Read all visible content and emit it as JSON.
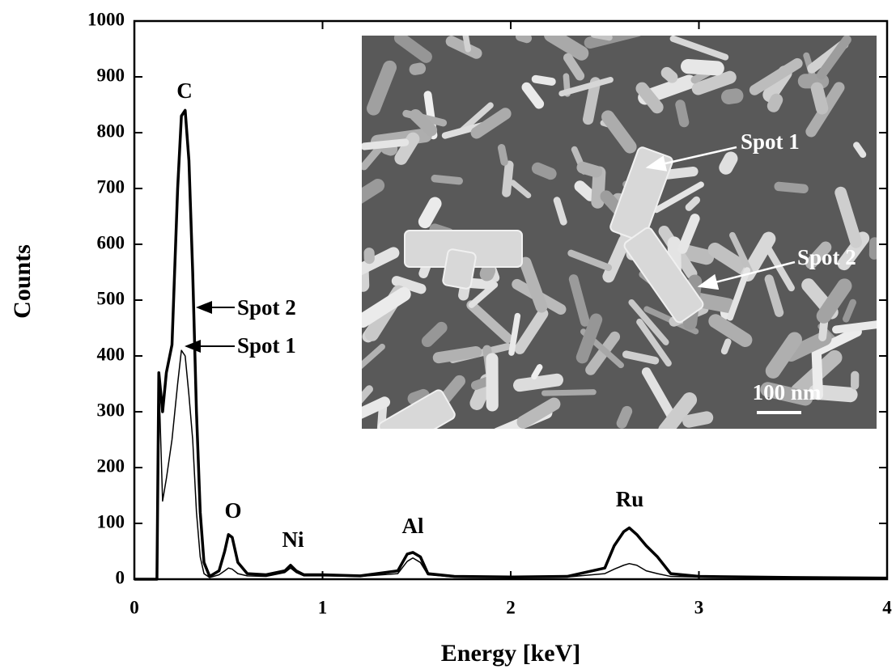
{
  "chart_data": {
    "type": "line",
    "xlabel": "Energy [keV]",
    "ylabel": "Counts",
    "x": [
      0,
      0.12,
      0.13,
      0.15,
      0.17,
      0.2,
      0.23,
      0.25,
      0.27,
      0.29,
      0.31,
      0.33,
      0.35,
      0.37,
      0.4,
      0.45,
      0.48,
      0.5,
      0.52,
      0.55,
      0.6,
      0.7,
      0.8,
      0.83,
      0.86,
      0.9,
      1.0,
      1.2,
      1.4,
      1.45,
      1.48,
      1.52,
      1.56,
      1.7,
      2.0,
      2.3,
      2.5,
      2.55,
      2.6,
      2.63,
      2.67,
      2.72,
      2.78,
      2.85,
      3.0,
      3.5,
      4.0
    ],
    "series": [
      {
        "name": "Spot 2",
        "color": "#000000",
        "values": [
          0,
          0,
          370,
          300,
          370,
          420,
          700,
          830,
          840,
          750,
          550,
          300,
          120,
          30,
          5,
          15,
          50,
          80,
          75,
          30,
          10,
          8,
          15,
          25,
          15,
          8,
          8,
          6,
          15,
          45,
          48,
          40,
          10,
          5,
          4,
          5,
          20,
          60,
          85,
          92,
          80,
          60,
          40,
          10,
          5,
          3,
          2
        ]
      },
      {
        "name": "Spot 1",
        "color": "#000000",
        "values": [
          0,
          0,
          360,
          140,
          180,
          250,
          350,
          410,
          400,
          330,
          250,
          120,
          40,
          10,
          3,
          8,
          15,
          20,
          18,
          10,
          6,
          5,
          12,
          20,
          12,
          6,
          6,
          5,
          10,
          32,
          38,
          30,
          8,
          4,
          3,
          4,
          10,
          18,
          25,
          28,
          25,
          15,
          10,
          5,
          4,
          2,
          2
        ]
      }
    ],
    "annotations": [
      "C",
      "O",
      "Ni",
      "Al",
      "Ru"
    ],
    "inset": {
      "scale_bar": "100 nm"
    },
    "xlim": [
      0,
      4
    ],
    "xticks": [
      0,
      1,
      2,
      3,
      4
    ],
    "ylim": [
      0,
      1000
    ],
    "yticks": [
      0,
      100,
      200,
      300,
      400,
      500,
      600,
      700,
      800,
      900,
      1000
    ]
  }
}
